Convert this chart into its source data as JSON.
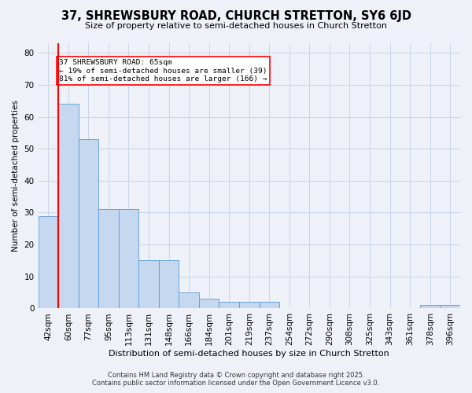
{
  "title": "37, SHREWSBURY ROAD, CHURCH STRETTON, SY6 6JD",
  "subtitle": "Size of property relative to semi-detached houses in Church Stretton",
  "xlabel": "Distribution of semi-detached houses by size in Church Stretton",
  "ylabel": "Number of semi-detached properties",
  "categories": [
    "42sqm",
    "60sqm",
    "77sqm",
    "95sqm",
    "113sqm",
    "131sqm",
    "148sqm",
    "166sqm",
    "184sqm",
    "201sqm",
    "219sqm",
    "237sqm",
    "254sqm",
    "272sqm",
    "290sqm",
    "308sqm",
    "325sqm",
    "343sqm",
    "361sqm",
    "378sqm",
    "396sqm"
  ],
  "values": [
    29,
    64,
    53,
    31,
    31,
    15,
    15,
    5,
    3,
    2,
    2,
    2,
    0,
    0,
    0,
    0,
    0,
    0,
    0,
    1,
    1
  ],
  "bar_color": "#c5d8f0",
  "bar_edge_color": "#5b9bd5",
  "vline_x": 1,
  "annotation_title": "37 SHREWSBURY ROAD: 65sqm",
  "annotation_line1": "← 19% of semi-detached houses are smaller (39)",
  "annotation_line2": "81% of semi-detached houses are larger (166) →",
  "ylim": [
    0,
    83
  ],
  "yticks": [
    0,
    10,
    20,
    30,
    40,
    50,
    60,
    70,
    80
  ],
  "grid_color": "#c8d4e8",
  "background_color": "#eef2f8",
  "footnote1": "Contains HM Land Registry data © Crown copyright and database right 2025.",
  "footnote2": "Contains public sector information licensed under the Open Government Licence v3.0."
}
